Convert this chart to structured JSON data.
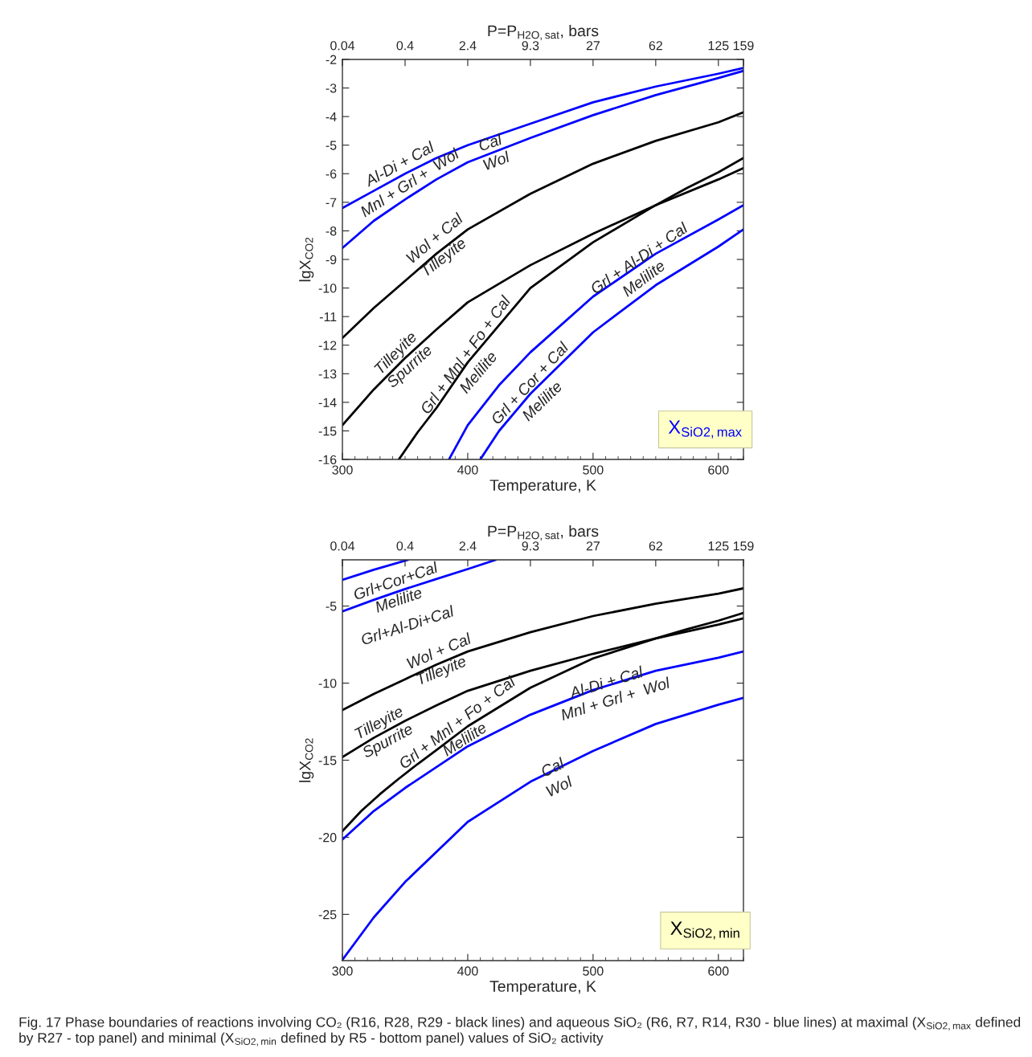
{
  "chart_data": [
    {
      "type": "line",
      "xlabel": "Temperature, K",
      "ylabel": "lgX$_{CO2}$",
      "x2label": "P=P$_{H2O,sat}$, bars",
      "xlim": [
        300,
        620
      ],
      "xticks": [
        300,
        400,
        500,
        600
      ],
      "ylim": [
        -16,
        -2
      ],
      "yticks": [
        -2,
        -3,
        -4,
        -5,
        -6,
        -7,
        -8,
        -9,
        -10,
        -11,
        -12,
        -13,
        -14,
        -15,
        -16
      ],
      "grid": false,
      "legend": false,
      "marker": "none",
      "line_style": "solid",
      "series": [
        {
          "color": "#0000ff",
          "x": [
            300,
            325,
            350,
            375,
            400,
            450,
            500,
            550,
            600,
            620
          ],
          "values": [
            -7.2,
            -6.6,
            -6.0,
            -5.45,
            -5.0,
            -4.25,
            -3.5,
            -2.95,
            -2.5,
            -2.3
          ]
        },
        {
          "color": "#0000ff",
          "x": [
            300,
            325,
            350,
            375,
            400,
            450,
            500,
            550,
            600,
            620
          ],
          "values": [
            -8.6,
            -7.65,
            -6.9,
            -6.2,
            -5.6,
            -4.75,
            -3.95,
            -3.25,
            -2.65,
            -2.4
          ]
        },
        {
          "color": "#000000",
          "x": [
            300,
            325,
            350,
            375,
            400,
            450,
            500,
            550,
            600,
            620
          ],
          "values": [
            -11.75,
            -10.7,
            -9.75,
            -8.8,
            -7.95,
            -6.7,
            -5.65,
            -4.85,
            -4.2,
            -3.85
          ]
        },
        {
          "color": "#000000",
          "x": [
            300,
            325,
            350,
            375,
            400,
            450,
            500,
            550,
            600,
            620
          ],
          "values": [
            -14.8,
            -13.55,
            -12.45,
            -11.45,
            -10.5,
            -9.2,
            -8.1,
            -7.1,
            -6.2,
            -5.8
          ]
        },
        {
          "color": "#000000",
          "x": [
            345,
            360,
            375,
            400,
            450,
            500,
            550,
            575,
            600,
            620
          ],
          "values": [
            -16,
            -15.05,
            -14.2,
            -12.6,
            -10.0,
            -8.4,
            -7.1,
            -6.5,
            -5.95,
            -5.45
          ]
        },
        {
          "color": "#0000ff",
          "x": [
            385,
            400,
            425,
            450,
            500,
            550,
            600,
            620
          ],
          "values": [
            -16,
            -14.8,
            -13.4,
            -12.25,
            -10.3,
            -8.8,
            -7.6,
            -7.1
          ]
        },
        {
          "color": "#0000ff",
          "x": [
            410,
            425,
            450,
            500,
            550,
            600,
            620
          ],
          "values": [
            -16,
            -15.0,
            -13.7,
            -11.55,
            -9.9,
            -8.55,
            -7.95
          ]
        }
      ],
      "annotations": [
        "0.04",
        "0.4",
        "2.4",
        "9.3",
        "27",
        "62",
        "125",
        "159",
        "Al-Di + Cal",
        "Mnl + Grl +  Wol",
        "Cal",
        "Wol",
        "Wol + Cal",
        "Tilleyite",
        "Tilleyite",
        "Spurrite",
        "Grl + Mnl + Fo + Cal",
        "Melilite",
        "Grl + Al-Di + Cal",
        "Melilite",
        "Grl + Cor + Cal",
        "Melilite",
        "X$_{SiO2,max}$"
      ]
    },
    {
      "type": "line",
      "xlabel": "Temperature, K",
      "ylabel": "lgX$_{CO2}$",
      "x2label": "P=P$_{H2O,sat}$, bars",
      "xlim": [
        300,
        620
      ],
      "xticks": [
        300,
        400,
        500,
        600
      ],
      "ylim": [
        -28,
        -2
      ],
      "yticks": [
        -5,
        -10,
        -15,
        -20,
        -25
      ],
      "grid": false,
      "legend": false,
      "marker": "none",
      "line_style": "solid",
      "series": [
        {
          "color": "#0000ff",
          "x": [
            300,
            325,
            352.5
          ],
          "values": [
            -3.3,
            -2.65,
            -2
          ]
        },
        {
          "color": "#0000ff",
          "x": [
            300,
            325,
            350,
            375,
            400,
            422.5
          ],
          "values": [
            -5.35,
            -4.6,
            -3.9,
            -3.25,
            -2.6,
            -2
          ]
        },
        {
          "color": "#000000",
          "x": [
            300,
            325,
            350,
            375,
            400,
            450,
            500,
            550,
            600,
            620
          ],
          "values": [
            -11.75,
            -10.7,
            -9.75,
            -8.8,
            -7.95,
            -6.7,
            -5.65,
            -4.85,
            -4.2,
            -3.85
          ]
        },
        {
          "color": "#000000",
          "x": [
            300,
            325,
            350,
            375,
            400,
            450,
            500,
            550,
            600,
            620
          ],
          "values": [
            -14.8,
            -13.55,
            -12.45,
            -11.45,
            -10.5,
            -9.2,
            -8.1,
            -7.1,
            -6.2,
            -5.8
          ]
        },
        {
          "color": "#000000",
          "x": [
            300,
            315,
            330,
            345,
            360,
            375,
            400,
            450,
            500,
            550,
            575,
            600,
            620
          ],
          "values": [
            -19.6,
            -18.3,
            -17.2,
            -16.2,
            -15.25,
            -14.35,
            -12.8,
            -10.3,
            -8.4,
            -7.1,
            -6.5,
            -5.95,
            -5.45
          ]
        },
        {
          "color": "#0000ff",
          "x": [
            300,
            325,
            350,
            400,
            450,
            500,
            550,
            600,
            620
          ],
          "values": [
            -20.15,
            -18.3,
            -16.8,
            -14.1,
            -12.05,
            -10.45,
            -9.2,
            -8.35,
            -7.95
          ]
        },
        {
          "color": "#0000ff",
          "x": [
            300,
            325,
            350,
            400,
            450,
            500,
            550,
            600,
            620
          ],
          "values": [
            -27.95,
            -25.2,
            -22.9,
            -19.0,
            -16.4,
            -14.4,
            -12.65,
            -11.4,
            -10.95
          ]
        }
      ],
      "annotations": [
        "0.04",
        "0.4",
        "2.4",
        "9.3",
        "27",
        "62",
        "125",
        "159",
        "Grl+Cor+Cal",
        "Melilite",
        "Grl+Al-Di+Cal",
        "Wol + Cal",
        "Tilleyite",
        "Tilleyite",
        "Spurrite",
        "Grl + Mnl + Fo + Cal",
        "Melilite",
        "Al-Di + Cal",
        "Mnl + Grl +  Wol",
        "Cal",
        "Wol",
        "X$_{SiO2,min}$",
        "Fig. 17 Phase boundaries of reactions involving CO₂ (R16, R28, R29 - black lines) and aqueous SiO₂ (R6, R7, R14, R30 - blue lines) at maximal (X$_{SiO2,max}$ defined by R27 - top panel) and minimal (X$_{SiO2,min}$ defined by R5 - bottom panel) values of SiO₂ activity"
      ]
    }
  ]
}
